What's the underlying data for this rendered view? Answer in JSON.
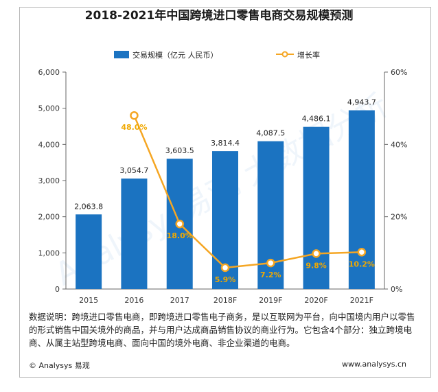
{
  "title": "2018-2021年中国跨境进口零售电商交易规模预测",
  "colors": {
    "bar": "#1b73c1",
    "line": "#f5a623",
    "line_label": "#f0a800",
    "axis": "#666666",
    "grid": "#bbbbbb"
  },
  "chart_data": {
    "type": "bar",
    "categories": [
      "2015",
      "2016",
      "2017",
      "2018F",
      "2019F",
      "2020F",
      "2021F"
    ],
    "series": [
      {
        "name": "交易规模（亿元 人民币）",
        "type": "bar",
        "axis": "left",
        "values": [
          2063.8,
          3054.7,
          3603.5,
          3814.4,
          4087.5,
          4486.1,
          4943.7
        ],
        "labels": [
          "2,063.8",
          "3,054.7",
          "3,603.5",
          "3,814.4",
          "4,087.5",
          "4,486.1",
          "4,943.7"
        ]
      },
      {
        "name": "增长率",
        "type": "line",
        "axis": "right",
        "values": [
          null,
          48.0,
          18.0,
          5.9,
          7.2,
          9.8,
          10.2
        ],
        "labels": [
          "",
          "48.0%",
          "18.0%",
          "5.9%",
          "7.2%",
          "9.8%",
          "10.2%"
        ]
      }
    ],
    "y_left": {
      "ylim": [
        0,
        6000
      ],
      "ticks": [
        "0",
        "1,000",
        "2,000",
        "3,000",
        "4,000",
        "5,000",
        "6,000"
      ]
    },
    "y_right": {
      "ylim": [
        0,
        60
      ],
      "ticks": [
        "0%",
        "20%",
        "40%",
        "60%"
      ]
    },
    "legend_position": "top",
    "grid": false
  },
  "description": "数据说明：跨境进口零售电商，即跨境进口零售电子商务，是以互联网为平台，向中国境内用户以零售的形式销售中国关境外的商品，并与用户达成商品销售协议的商业行为。它包含4个部分：独立跨境电商、从属主站型跨境电商、面向中国的境外电商、非企业渠道的电商。",
  "footer": {
    "left": "© Analysys 易观",
    "right": "www.analysys.cn"
  },
  "watermark": "Analysys易观 大数据分析"
}
